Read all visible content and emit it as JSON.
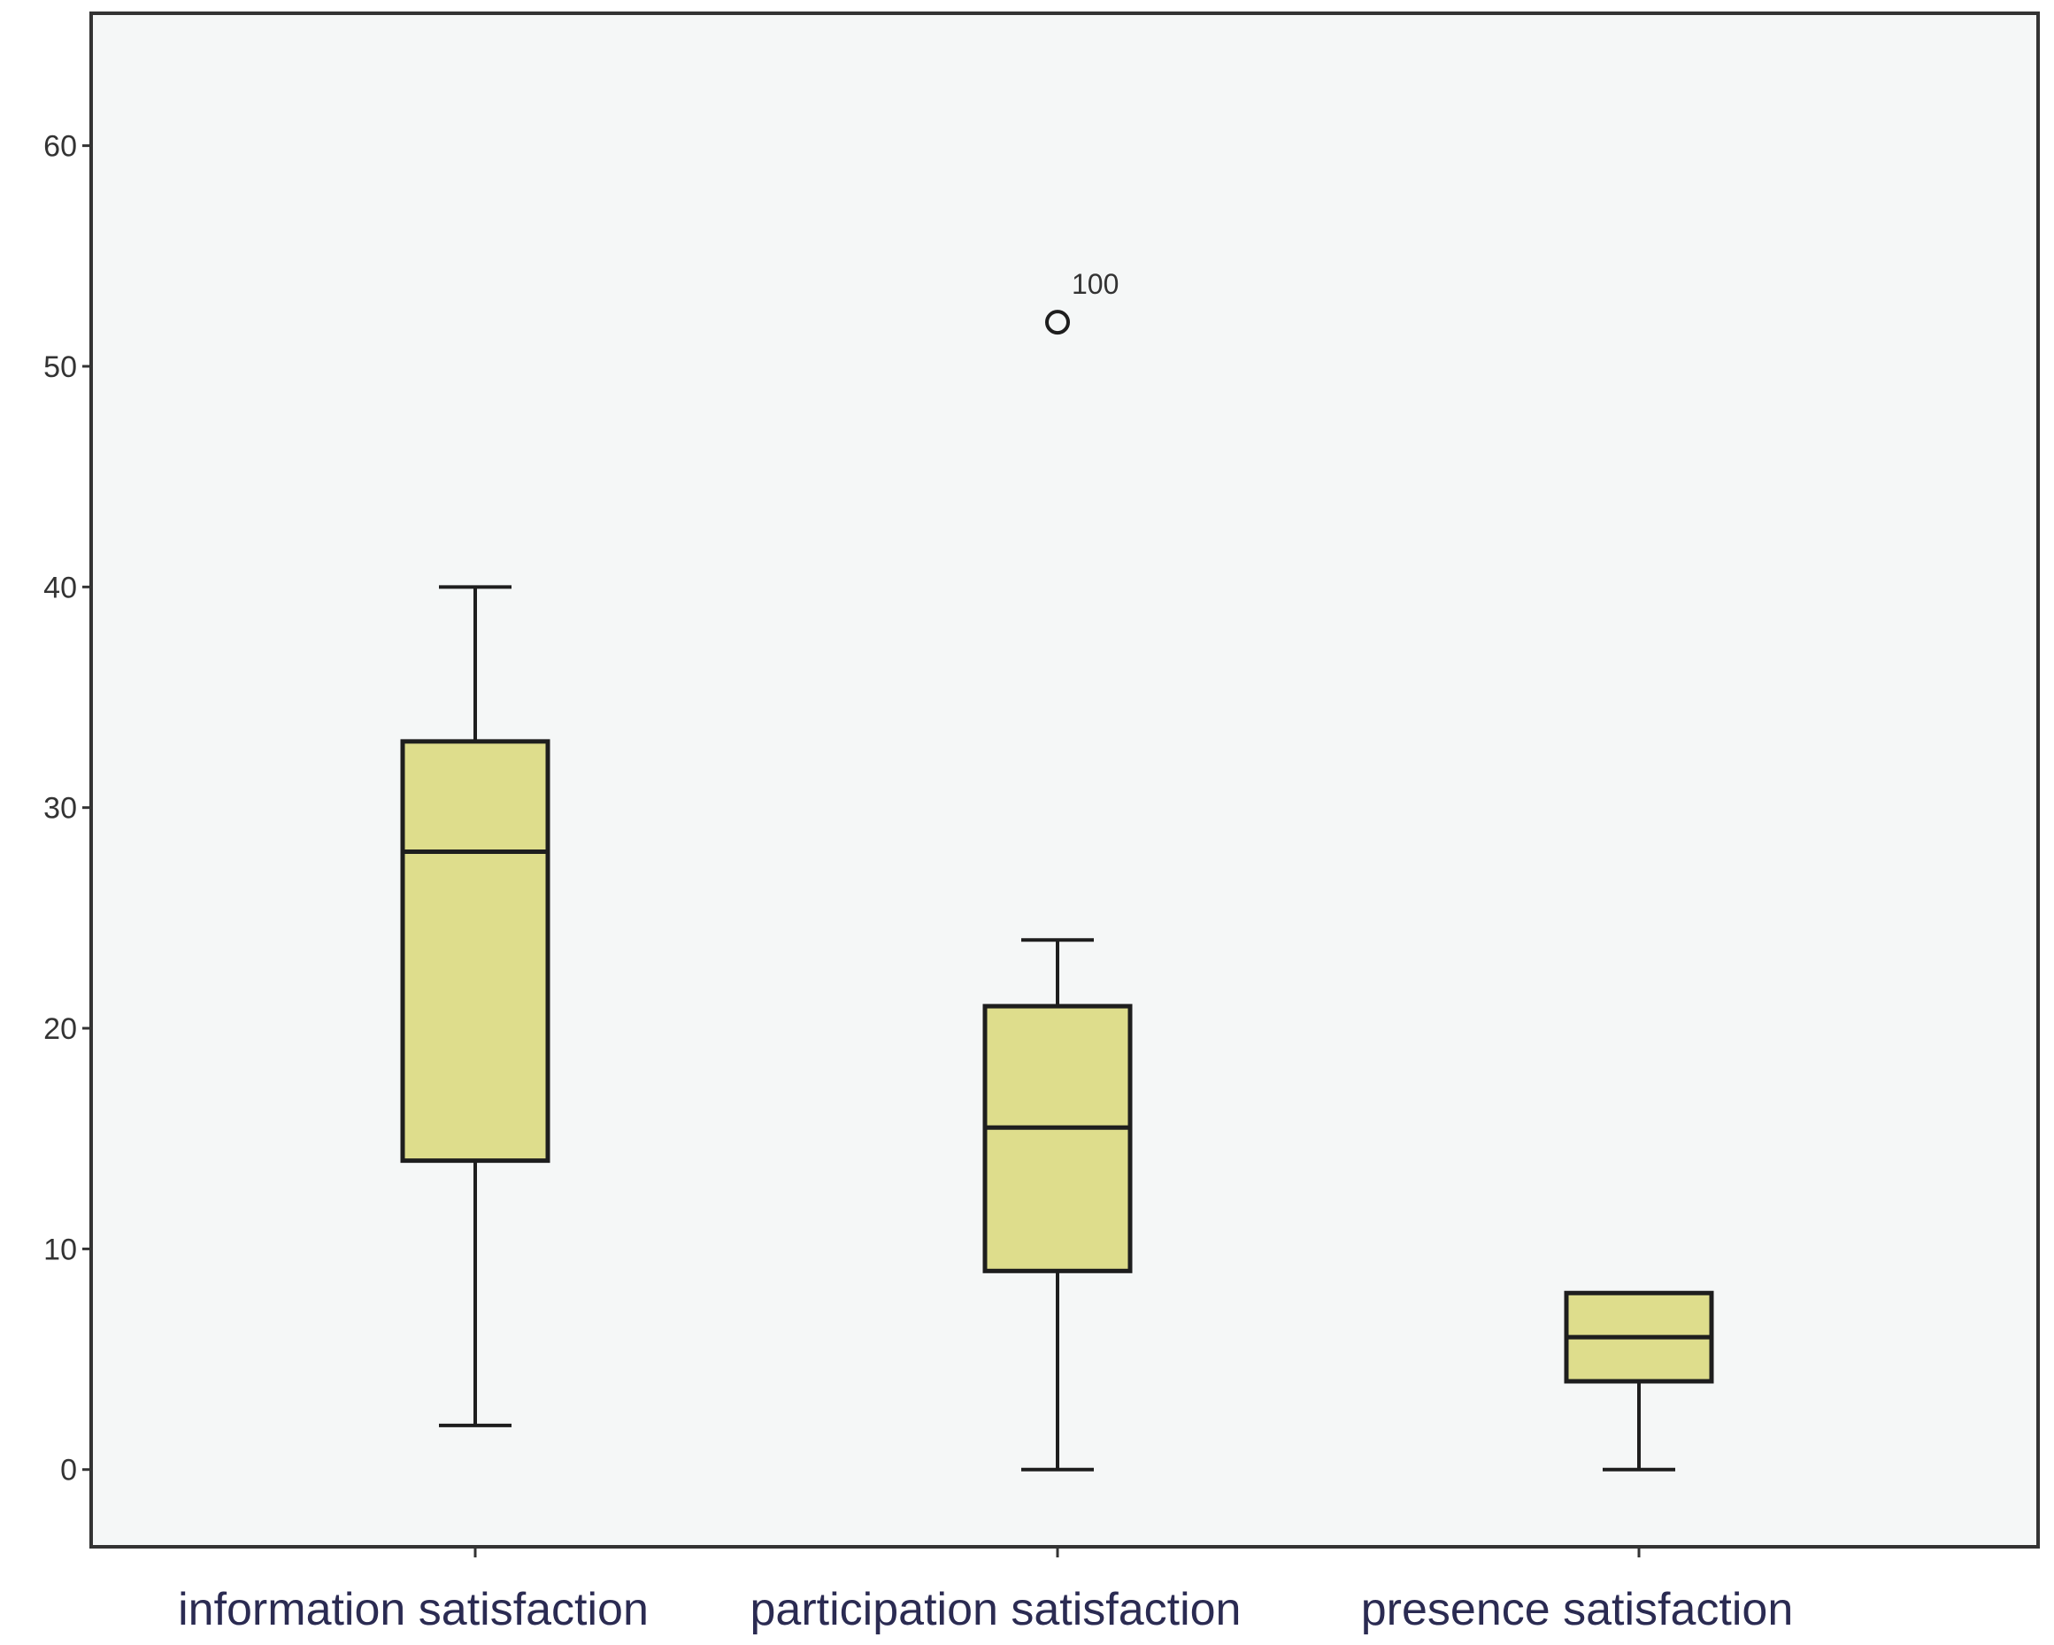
{
  "chart_data": {
    "type": "box",
    "title": "",
    "xlabel": "",
    "ylabel": "",
    "ylim": [
      -3.5,
      66
    ],
    "yticks": [
      0,
      10,
      20,
      30,
      40,
      50,
      60
    ],
    "grid": false,
    "legend": "none",
    "categories": [
      "information satisfaction",
      "participation satisfaction",
      "presence satisfaction"
    ],
    "boxes": [
      {
        "category": "information satisfaction",
        "min": 2,
        "q1": 14,
        "median": 28,
        "q3": 33,
        "max": 40,
        "outliers": []
      },
      {
        "category": "participation satisfaction",
        "min": 0,
        "q1": 9,
        "median": 15.5,
        "q3": 21,
        "max": 24,
        "outliers": [
          {
            "value": 52,
            "label": "100"
          }
        ]
      },
      {
        "category": "presence satisfaction",
        "min": 0,
        "q1": 4,
        "median": 6,
        "q3": 8,
        "max": 8,
        "outliers": []
      }
    ],
    "colors": {
      "box_fill": "#dedd8c",
      "stroke": "#1e1e1e",
      "plot_background": "#f5f7f7",
      "frame": "#333333"
    }
  }
}
